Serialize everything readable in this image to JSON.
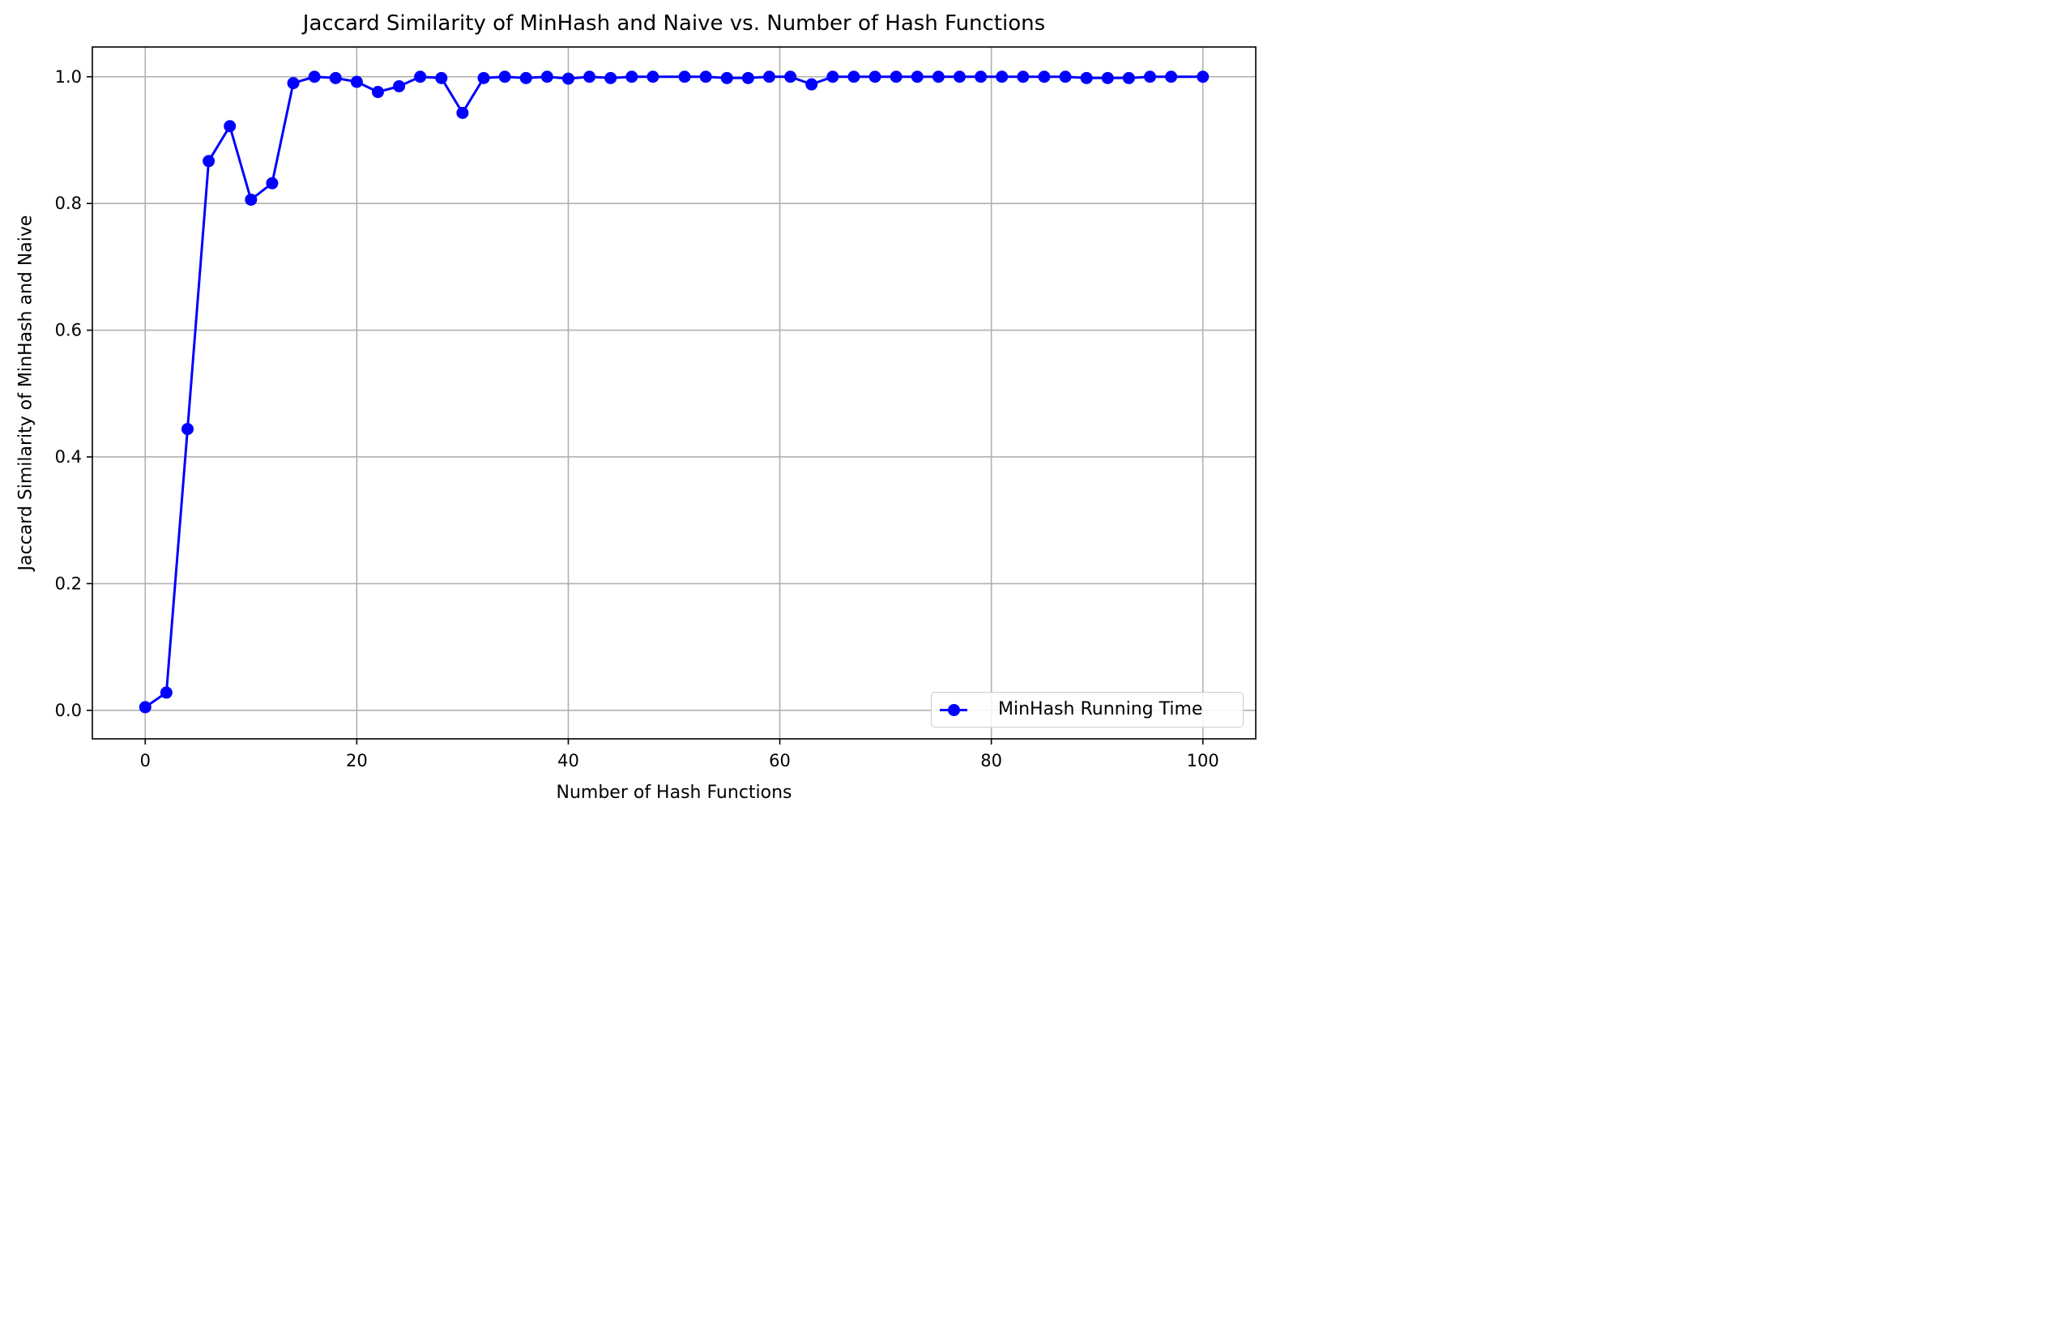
{
  "chart_data": {
    "type": "line",
    "title": "Jaccard Similarity of MinHash and Naive vs. Number of Hash Functions",
    "xlabel": "Number of Hash Functions",
    "ylabel": "Jaccard Similarity of MinHash and Naive",
    "xlim": [
      -5,
      105
    ],
    "ylim": [
      -0.045,
      1.047
    ],
    "xticks": [
      0,
      20,
      40,
      60,
      80,
      100
    ],
    "xtick_labels": [
      "0",
      "20",
      "40",
      "60",
      "80",
      "100"
    ],
    "yticks": [
      0.0,
      0.2,
      0.4,
      0.6,
      0.8,
      1.0
    ],
    "ytick_labels": [
      "0.0",
      "0.2",
      "0.4",
      "0.6",
      "0.8",
      "1.0"
    ],
    "grid": true,
    "legend_position": "lower-right",
    "series": [
      {
        "name": "MinHash Running Time",
        "color": "#0000ff",
        "marker": "circle",
        "x": [
          0,
          2,
          4,
          6,
          8,
          10,
          12,
          14,
          16,
          18,
          20,
          22,
          24,
          26,
          28,
          30,
          32,
          34,
          36,
          38,
          40,
          42,
          44,
          46,
          48,
          51,
          53,
          55,
          57,
          59,
          61,
          63,
          65,
          67,
          69,
          71,
          73,
          75,
          77,
          79,
          81,
          83,
          85,
          87,
          89,
          91,
          93,
          95,
          97,
          100
        ],
        "y": [
          0.005,
          0.028,
          0.444,
          0.867,
          0.922,
          0.806,
          0.832,
          0.99,
          1.0,
          0.998,
          0.992,
          0.976,
          0.985,
          1.0,
          0.998,
          0.943,
          0.998,
          1.0,
          0.998,
          1.0,
          0.997,
          1.0,
          0.998,
          1.0,
          1.0,
          1.0,
          1.0,
          0.998,
          0.998,
          1.0,
          1.0,
          0.988,
          1.0,
          1.0,
          1.0,
          1.0,
          1.0,
          1.0,
          1.0,
          1.0,
          1.0,
          1.0,
          1.0,
          1.0,
          0.998,
          0.998,
          0.998,
          1.0,
          1.0,
          1.0
        ]
      }
    ]
  }
}
